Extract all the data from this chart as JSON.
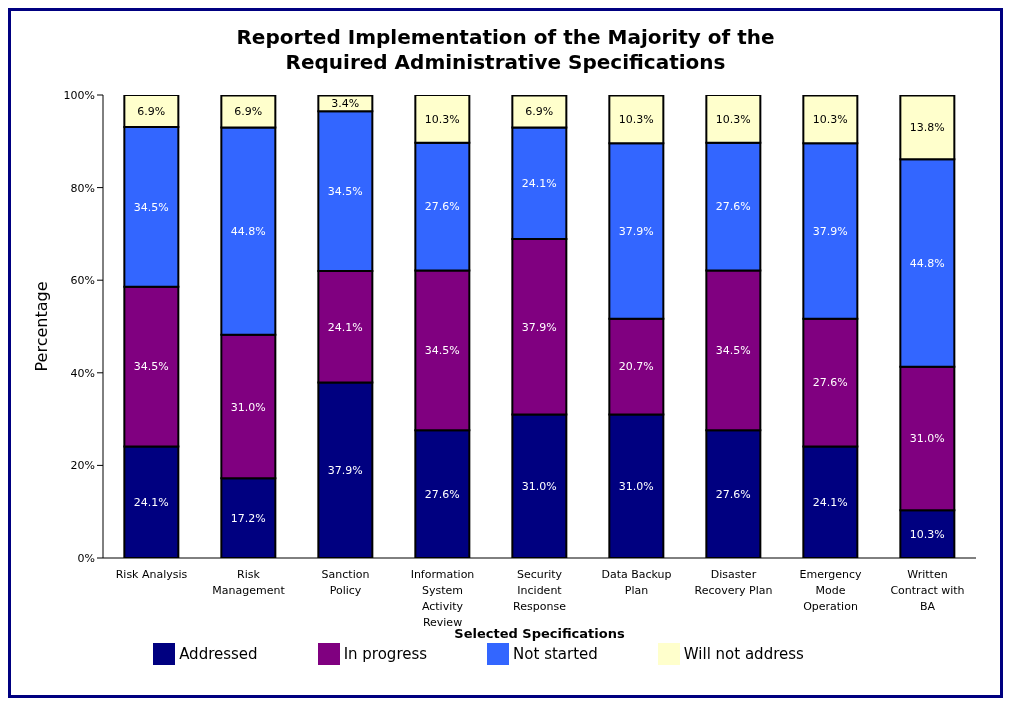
{
  "chart_data": {
    "type": "bar",
    "stacked": true,
    "title": "Reported Implementation of the Majority of the Required Administrative Specifications",
    "xlabel": "Selected Specifications",
    "ylabel": "Percentage",
    "categories": [
      "Risk Analysis",
      "Risk Management",
      "Sanction Policy",
      "Information System Activity Review",
      "Security Incident Response",
      "Data Backup Plan",
      "Disaster Recovery Plan",
      "Emergency Mode Operation",
      "Written Contract with BA"
    ],
    "series": [
      {
        "name": "Addressed",
        "color": "#000080",
        "values": [
          24.1,
          17.2,
          37.9,
          27.6,
          31.0,
          31.0,
          27.6,
          24.1,
          10.3
        ],
        "value_labels": [
          "24.1%",
          "17.2%",
          "37.9%",
          "27.6%",
          "31.0%",
          "31.0%",
          "27.6%",
          "24.1%",
          "10.3%"
        ]
      },
      {
        "name": "In progress",
        "color": "#800080",
        "values": [
          34.5,
          31.0,
          24.1,
          34.5,
          37.9,
          20.7,
          34.5,
          27.6,
          31.0
        ],
        "value_labels": [
          "34.5%",
          "31.0%",
          "24.1%",
          "34.5%",
          "37.9%",
          "20.7%",
          "34.5%",
          "27.6%",
          "31.0%"
        ]
      },
      {
        "name": "Not started",
        "color": "#3366ff",
        "values": [
          34.5,
          44.8,
          34.5,
          27.6,
          24.1,
          37.9,
          27.6,
          37.9,
          44.8
        ],
        "value_labels": [
          "34.5%",
          "44.8%",
          "34.5%",
          "27.6%",
          "24.1%",
          "37.9%",
          "27.6%",
          "37.9%",
          "44.8%"
        ]
      },
      {
        "name": "Will not address",
        "color": "#ffffcc",
        "values": [
          6.9,
          6.9,
          3.4,
          10.3,
          6.9,
          10.3,
          10.3,
          10.3,
          13.8
        ],
        "value_labels": [
          "6.9%",
          "6.9%",
          "3.4%",
          "10.3%",
          "6.9%",
          "10.3%",
          "10.3%",
          "10.3%",
          "13.8%"
        ]
      }
    ],
    "ylim": [
      0,
      100
    ],
    "yticks": [
      {
        "value": 0,
        "label": "0%"
      },
      {
        "value": 20,
        "label": "20%"
      },
      {
        "value": 40,
        "label": "40%"
      },
      {
        "value": 60,
        "label": "60%"
      },
      {
        "value": 80,
        "label": "80%"
      },
      {
        "value": 100,
        "label": "100%"
      }
    ],
    "grid": false,
    "legend": "bottom"
  }
}
